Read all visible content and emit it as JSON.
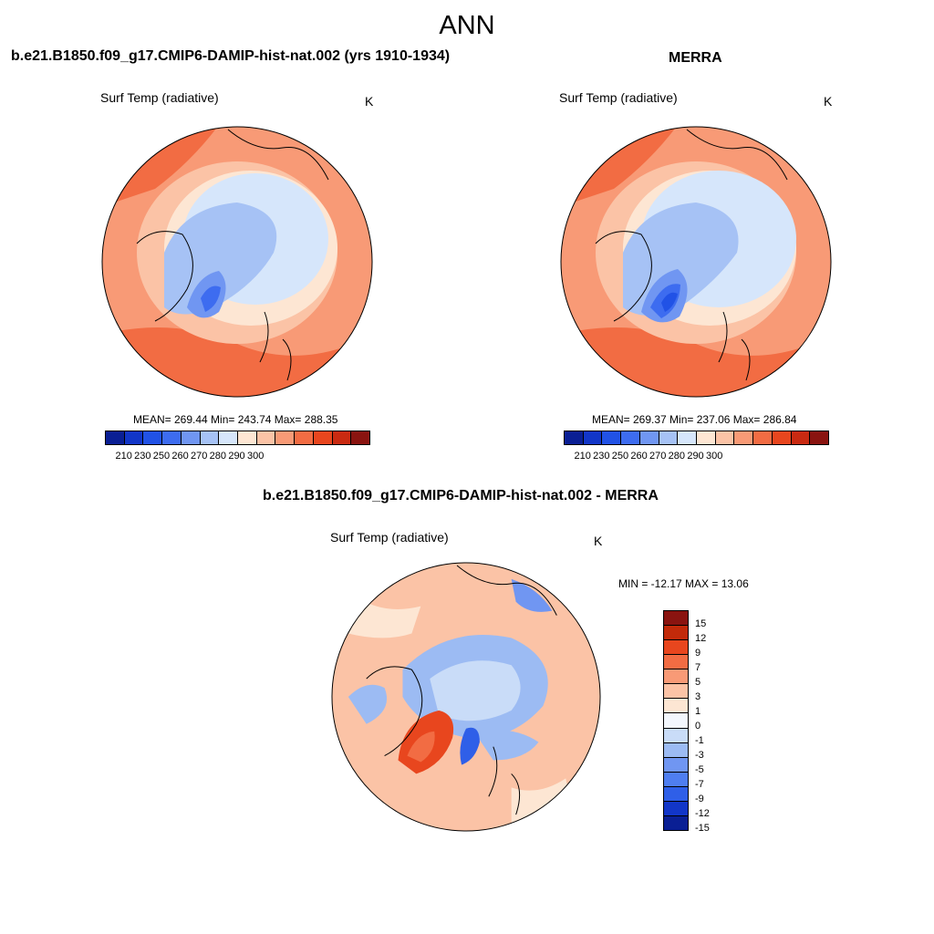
{
  "figure": {
    "title": "ANN"
  },
  "panels": {
    "model": {
      "title": "b.e21.B1850.f09_g17.CMIP6-DAMIP-hist-nat.002 (yrs 1910-1934)",
      "variable": "Surf Temp (radiative)",
      "units": "K",
      "stats": "MEAN= 269.44  Min= 243.74  Max= 288.35"
    },
    "obs": {
      "title": "MERRA",
      "variable": "Surf Temp (radiative)",
      "units": "K",
      "stats": "MEAN= 269.37  Min= 237.06  Max= 286.84"
    },
    "diff": {
      "title": "b.e21.B1850.f09_g17.CMIP6-DAMIP-hist-nat.002 - MERRA",
      "variable": "Surf Temp (radiative)",
      "units": "K",
      "stats": "MIN = -12.17 MAX =  13.06"
    }
  },
  "chart_data": [
    {
      "type": "heatmap",
      "projection": "north-polar-stereographic",
      "title": "b.e21.B1850.f09_g17.CMIP6-DAMIP-hist-nat.002 (yrs 1910-1934)",
      "variable": "Surf Temp (radiative)",
      "units": "K",
      "mean": 269.44,
      "min": 243.74,
      "max": 288.35,
      "colorbar_ticks": [
        "210",
        "230",
        "250",
        "260",
        "270",
        "280",
        "290",
        "300"
      ],
      "colorbar_colors": [
        "#0a1f94",
        "#1236c8",
        "#2152e6",
        "#3d6cf0",
        "#7096f2",
        "#a6c2f5",
        "#d6e6fb",
        "#fde6d3",
        "#fbc3a6",
        "#f89a76",
        "#f26c43",
        "#e8461e",
        "#c92a11",
        "#8a1410"
      ]
    },
    {
      "type": "heatmap",
      "projection": "north-polar-stereographic",
      "title": "MERRA",
      "variable": "Surf Temp (radiative)",
      "units": "K",
      "mean": 269.37,
      "min": 237.06,
      "max": 286.84,
      "colorbar_ticks": [
        "210",
        "230",
        "250",
        "260",
        "270",
        "280",
        "290",
        "300"
      ],
      "colorbar_colors": [
        "#0a1f94",
        "#1236c8",
        "#2152e6",
        "#3d6cf0",
        "#7096f2",
        "#a6c2f5",
        "#d6e6fb",
        "#fde6d3",
        "#fbc3a6",
        "#f89a76",
        "#f26c43",
        "#e8461e",
        "#c92a11",
        "#8a1410"
      ]
    },
    {
      "type": "heatmap",
      "projection": "north-polar-stereographic",
      "title": "b.e21.B1850.f09_g17.CMIP6-DAMIP-hist-nat.002 - MERRA",
      "variable": "Surf Temp (radiative)",
      "units": "K",
      "min": -12.17,
      "max": 13.06,
      "colorbar_ticks": [
        "15",
        "12",
        "9",
        "7",
        "5",
        "3",
        "1",
        "0",
        "-1",
        "-3",
        "-5",
        "-7",
        "-9",
        "-12",
        "-15"
      ],
      "colorbar_colors": [
        "#8a1410",
        "#c22a0a",
        "#e8461e",
        "#f26c43",
        "#f89a76",
        "#fbc3a6",
        "#fde6d3",
        "#f3f7fd",
        "#c9dcf8",
        "#9cbbf3",
        "#7096f2",
        "#4f7ef0",
        "#2f5fe8",
        "#1236c8",
        "#0a1f94"
      ]
    }
  ]
}
